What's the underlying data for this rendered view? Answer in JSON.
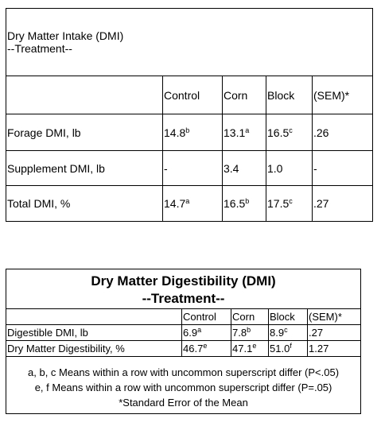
{
  "intake": {
    "title": "Dry Matter Intake (DMI)",
    "subtitle": "--Treatment--",
    "columns": [
      "Control",
      "Corn",
      "Block",
      "(SEM)*"
    ],
    "rows": [
      {
        "label": "Forage DMI, lb",
        "cells": [
          {
            "text": "14.8",
            "sup": "b"
          },
          {
            "text": "13.1",
            "sup": "a"
          },
          {
            "text": "16.5",
            "sup": "c"
          },
          {
            "text": ".26"
          }
        ]
      },
      {
        "label": "Supplement DMI, lb",
        "cells": [
          {
            "text": "-"
          },
          {
            "text": "3.4"
          },
          {
            "text": "1.0"
          },
          {
            "text": "-"
          }
        ]
      },
      {
        "label": "Total DMI, %",
        "cells": [
          {
            "text": "14.7",
            "sup": "a"
          },
          {
            "text": "16.5",
            "sup": "b"
          },
          {
            "text": "17.5",
            "sup": "c"
          },
          {
            "text": ".27"
          }
        ]
      }
    ]
  },
  "digestibility": {
    "title": "Dry Matter Digestibility (DMI)",
    "subtitle": "--Treatment--",
    "columns": [
      "Control",
      "Corn",
      "Block",
      "(SEM)*"
    ],
    "rows": [
      {
        "label": "Digestible DMI, lb",
        "cells": [
          {
            "text": "6.9",
            "sup": "a"
          },
          {
            "text": "7.8",
            "sup": "b"
          },
          {
            "text": "8.9",
            "sup": "c"
          },
          {
            "text": ".27"
          }
        ]
      },
      {
        "label": "Dry Matter Digestibility, %",
        "cells": [
          {
            "text": "46.7",
            "sup": "e"
          },
          {
            "text": "47.1",
            "sup": "e"
          },
          {
            "text": "51.0",
            "sup": "f"
          },
          {
            "text": "1.27"
          }
        ]
      }
    ],
    "footnotes": [
      "a, b, c Means within a row with uncommon superscript differ (P<.05)",
      "e, f Means within a row with uncommon superscript differ (P=.05)",
      "*Standard Error of the Mean"
    ]
  }
}
